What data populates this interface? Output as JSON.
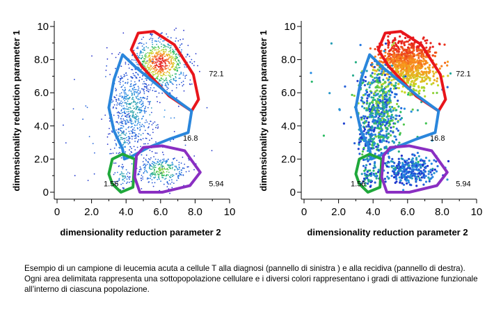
{
  "chart_data": [
    {
      "type": "scatter",
      "panel": "left",
      "xlabel": "dimensionality reduction parameter 2",
      "ylabel": "dimensionality reduction parameter 1",
      "xlim": [
        0,
        10
      ],
      "ylim": [
        0,
        10
      ],
      "x_ticks": [
        "0",
        "2.0",
        "4.0",
        "6.0",
        "8.0",
        "10"
      ],
      "y_ticks": [
        "0",
        "2.0",
        "4.0",
        "6.0",
        "8.0",
        "10"
      ],
      "coloring": "density (blue low → red high)",
      "gates": [
        {
          "name": "red",
          "color": "#e8151b",
          "percent": "72.1",
          "polygon": [
            [
              4.7,
              9.6
            ],
            [
              5.6,
              9.7
            ],
            [
              6.8,
              8.9
            ],
            [
              7.9,
              7.1
            ],
            [
              8.2,
              5.6
            ],
            [
              7.8,
              4.9
            ],
            [
              6.5,
              5.8
            ],
            [
              4.9,
              7.6
            ],
            [
              4.3,
              8.6
            ]
          ]
        },
        {
          "name": "blue",
          "color": "#2a86dc",
          "percent": "16.8",
          "polygon": [
            [
              3.8,
              8.3
            ],
            [
              4.6,
              7.5
            ],
            [
              6.6,
              5.8
            ],
            [
              7.8,
              4.9
            ],
            [
              7.6,
              3.6
            ],
            [
              6.5,
              3.2
            ],
            [
              5.3,
              2.7
            ],
            [
              4.4,
              2.2
            ],
            [
              3.9,
              2.0
            ],
            [
              3.8,
              2.6
            ],
            [
              3.3,
              3.7
            ],
            [
              3.0,
              5.1
            ],
            [
              3.3,
              6.8
            ]
          ]
        },
        {
          "name": "green",
          "color": "#1fa83b",
          "percent": "1.56",
          "polygon": [
            [
              3.2,
              2.0
            ],
            [
              3.8,
              2.3
            ],
            [
              4.5,
              2.0
            ],
            [
              4.4,
              0.3
            ],
            [
              3.7,
              0.0
            ],
            [
              3.2,
              0.5
            ],
            [
              3.0,
              1.1
            ]
          ]
        },
        {
          "name": "purple",
          "color": "#8a2fc2",
          "percent": "5.94",
          "polygon": [
            [
              5.0,
              2.7
            ],
            [
              6.1,
              2.8
            ],
            [
              7.4,
              2.5
            ],
            [
              8.3,
              1.2
            ],
            [
              7.7,
              0.4
            ],
            [
              6.1,
              0.0
            ],
            [
              4.8,
              0.0
            ],
            [
              4.5,
              0.9
            ],
            [
              4.6,
              2.2
            ]
          ]
        }
      ]
    },
    {
      "type": "scatter",
      "panel": "right",
      "xlabel": "dimensionality reduction parameter 2",
      "ylabel": "dimensionality reduction parameter 1",
      "xlim": [
        0,
        10
      ],
      "ylim": [
        0,
        10
      ],
      "x_ticks": [
        "0",
        "2.0",
        "4.0",
        "6.0",
        "8.0",
        "10"
      ],
      "y_ticks": [
        "0",
        "2.0",
        "4.0",
        "6.0",
        "8.0",
        "10"
      ],
      "coloring": "activation level (blue low → red high)",
      "gates": [
        {
          "name": "red",
          "color": "#e8151b",
          "percent": "72.1",
          "polygon": [
            [
              4.7,
              9.6
            ],
            [
              5.6,
              9.7
            ],
            [
              6.8,
              8.9
            ],
            [
              7.9,
              7.1
            ],
            [
              8.2,
              5.6
            ],
            [
              7.8,
              4.9
            ],
            [
              6.5,
              5.8
            ],
            [
              4.9,
              7.6
            ],
            [
              4.3,
              8.6
            ]
          ]
        },
        {
          "name": "blue",
          "color": "#2a86dc",
          "percent": "16.8",
          "polygon": [
            [
              3.8,
              8.3
            ],
            [
              4.6,
              7.5
            ],
            [
              6.6,
              5.8
            ],
            [
              7.8,
              4.9
            ],
            [
              7.6,
              3.6
            ],
            [
              6.5,
              3.2
            ],
            [
              5.3,
              2.7
            ],
            [
              4.4,
              2.2
            ],
            [
              3.9,
              2.0
            ],
            [
              3.8,
              2.6
            ],
            [
              3.3,
              3.7
            ],
            [
              3.0,
              5.1
            ],
            [
              3.3,
              6.8
            ]
          ]
        },
        {
          "name": "green",
          "color": "#1fa83b",
          "percent": "1.56",
          "polygon": [
            [
              3.2,
              2.0
            ],
            [
              3.8,
              2.3
            ],
            [
              4.5,
              2.0
            ],
            [
              4.4,
              0.3
            ],
            [
              3.7,
              0.0
            ],
            [
              3.2,
              0.5
            ],
            [
              3.0,
              1.1
            ]
          ]
        },
        {
          "name": "purple",
          "color": "#8a2fc2",
          "percent": "5.94",
          "polygon": [
            [
              5.0,
              2.7
            ],
            [
              6.1,
              2.8
            ],
            [
              7.4,
              2.5
            ],
            [
              8.3,
              1.2
            ],
            [
              7.7,
              0.4
            ],
            [
              6.1,
              0.0
            ],
            [
              4.8,
              0.0
            ],
            [
              4.5,
              0.9
            ],
            [
              4.6,
              2.2
            ]
          ]
        }
      ]
    }
  ],
  "caption": "Esempio di un campione di leucemia acuta a cellule T alla diagnosi (pannello di sinistra ) e alla recidiva (pannello di destra). Ogni area delimitata rappresenta una sottopopolazione cellulare  e i diversi colori rappresentano i gradi di attivazione funzionale all’interno di ciascuna popolazione."
}
